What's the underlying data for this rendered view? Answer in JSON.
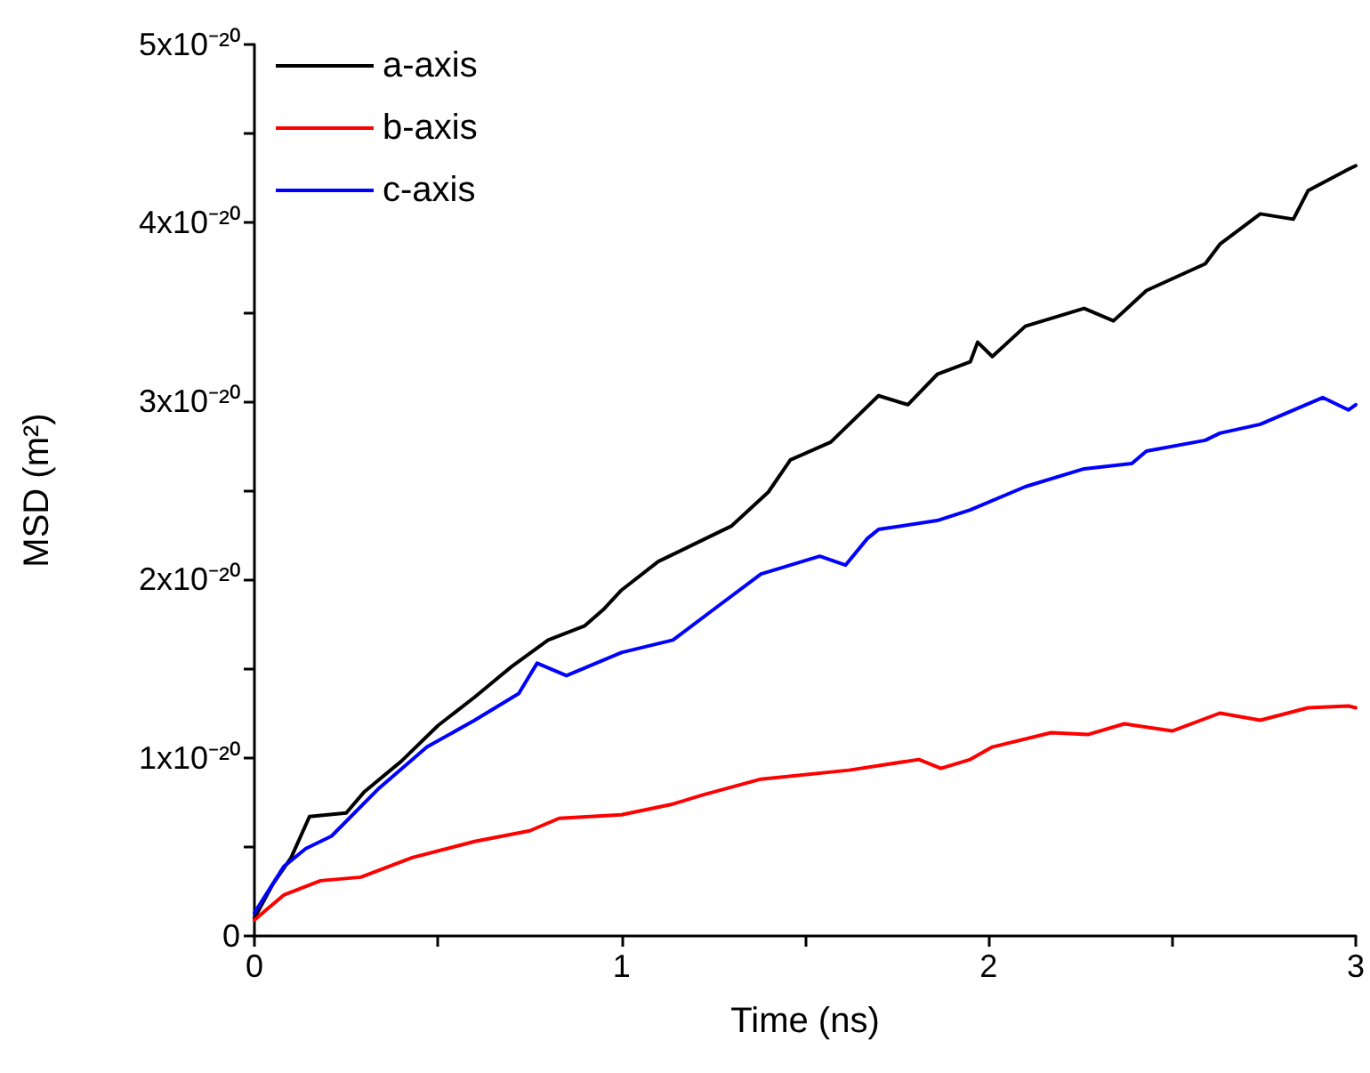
{
  "chart_data": {
    "type": "line",
    "xlabel": "Time (ns)",
    "ylabel": "MSD (m²)",
    "xlim": [
      0,
      3
    ],
    "xticks": [
      0,
      {
        "value": 0.5,
        "label": null
      },
      1,
      {
        "value": 1.5,
        "label": null
      },
      2,
      {
        "value": 2.5,
        "label": null
      },
      3
    ],
    "ylim": [
      0,
      5e-20
    ],
    "yticks": [
      {
        "value": 0,
        "label": "0"
      },
      {
        "value": 5e-21,
        "label": null
      },
      {
        "value": 1e-20,
        "label": "1x10⁻²⁰"
      },
      {
        "value": 1.5e-20,
        "label": null
      },
      {
        "value": 2e-20,
        "label": "2x10⁻²⁰"
      },
      {
        "value": 2.5e-20,
        "label": null
      },
      {
        "value": 3e-20,
        "label": "3x10⁻²⁰"
      },
      {
        "value": 3.5e-20,
        "label": null
      },
      {
        "value": 4e-20,
        "label": "4x10⁻²⁰"
      },
      {
        "value": 4.5e-20,
        "label": null
      },
      {
        "value": 5e-20,
        "label": "5x10⁻²⁰"
      }
    ],
    "grid": false,
    "legend": "top left",
    "marker": "none",
    "line_style": "solid",
    "series": [
      {
        "name": "a-axis",
        "color": "#000000",
        "x": [
          0,
          0.05,
          0.1,
          0.15,
          0.25,
          0.3,
          0.4,
          0.5,
          0.6,
          0.7,
          0.8,
          0.9,
          0.95,
          1.0,
          1.1,
          1.2,
          1.3,
          1.4,
          1.46,
          1.57,
          1.7,
          1.78,
          1.86,
          1.95,
          1.97,
          2.01,
          2.1,
          2.26,
          2.34,
          2.43,
          2.59,
          2.63,
          2.74,
          2.83,
          2.87,
          2.98,
          3.0
        ],
        "values": [
          1e-21,
          2.9e-21,
          4.4e-21,
          6.7e-21,
          6.9e-21,
          8.1e-21,
          9.8e-21,
          1.18e-20,
          1.34e-20,
          1.51e-20,
          1.66e-20,
          1.74e-20,
          1.83e-20,
          1.94e-20,
          2.1e-20,
          2.2e-20,
          2.3e-20,
          2.49e-20,
          2.67e-20,
          2.77e-20,
          3.03e-20,
          2.98e-20,
          3.15e-20,
          3.22e-20,
          3.33e-20,
          3.25e-20,
          3.42e-20,
          3.52e-20,
          3.45e-20,
          3.62e-20,
          3.77e-20,
          3.88e-20,
          4.05e-20,
          4.02e-20,
          4.18e-20,
          4.3e-20,
          4.32e-20
        ]
      },
      {
        "name": "b-axis",
        "color": "#ff0000",
        "x": [
          0,
          0.08,
          0.18,
          0.29,
          0.43,
          0.6,
          0.75,
          0.83,
          1.0,
          1.14,
          1.22,
          1.38,
          1.62,
          1.81,
          1.87,
          1.95,
          2.01,
          2.17,
          2.27,
          2.37,
          2.5,
          2.63,
          2.74,
          2.87,
          2.98,
          3.0
        ],
        "values": [
          9e-22,
          2.3e-21,
          3.1e-21,
          3.3e-21,
          4.4e-21,
          5.3e-21,
          5.9e-21,
          6.6e-21,
          6.8e-21,
          7.4e-21,
          7.9e-21,
          8.8e-21,
          9.3e-21,
          9.9e-21,
          9.4e-21,
          9.9e-21,
          1.06e-20,
          1.14e-20,
          1.13e-20,
          1.19e-20,
          1.15e-20,
          1.25e-20,
          1.21e-20,
          1.28e-20,
          1.29e-20,
          1.28e-20
        ]
      },
      {
        "name": "c-axis",
        "color": "#0000ff",
        "x": [
          0,
          0.08,
          0.14,
          0.21,
          0.34,
          0.47,
          0.6,
          0.72,
          0.77,
          0.85,
          1.0,
          1.14,
          1.25,
          1.38,
          1.54,
          1.61,
          1.67,
          1.7,
          1.86,
          1.95,
          2.1,
          2.26,
          2.39,
          2.43,
          2.59,
          2.63,
          2.74,
          2.91,
          2.98,
          3.0
        ],
        "values": [
          1.3e-21,
          3.9e-21,
          4.9e-21,
          5.6e-21,
          8.3e-21,
          1.06e-20,
          1.21e-20,
          1.36e-20,
          1.53e-20,
          1.46e-20,
          1.59e-20,
          1.66e-20,
          1.83e-20,
          2.03e-20,
          2.13e-20,
          2.08e-20,
          2.23e-20,
          2.28e-20,
          2.33e-20,
          2.39e-20,
          2.52e-20,
          2.62e-20,
          2.65e-20,
          2.72e-20,
          2.78e-20,
          2.82e-20,
          2.87e-20,
          3.02e-20,
          2.95e-20,
          2.98e-20
        ]
      }
    ]
  }
}
